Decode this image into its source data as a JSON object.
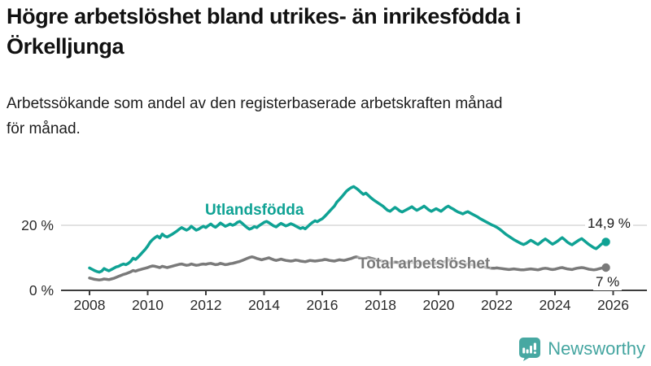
{
  "header": {
    "title": "Högre arbetslöshet bland utrikes- än inrikesfödda i\nÖrkelljunga",
    "subtitle": "Arbetssökande som andel av den registerbaserade arbetskraften månad\nför månad."
  },
  "chart_data": {
    "type": "line",
    "title": "Högre arbetslöshet bland utrikes- än inrikesfödda i Örkelljunga",
    "subtitle": "Arbetssökande som andel av den registerbaserade arbetskraften månad för månad.",
    "x_unit": "monthly, decimal years",
    "x_start_year": 2008,
    "x_step_months": 1,
    "xticks": [
      2008,
      2010,
      2012,
      2014,
      2016,
      2018,
      2020,
      2022,
      2024,
      2026
    ],
    "yticks": [
      {
        "value": 0,
        "label": "0 %"
      },
      {
        "value": 20,
        "label": "20 %"
      }
    ],
    "ylim": [
      0,
      34
    ],
    "grid": "horizontal line at 20% only",
    "legend_position": "inline labels on lines",
    "series": [
      {
        "name": "Utlandsfödda",
        "color": "#0FA294",
        "end_label": "14,9 %",
        "end_value": 14.9,
        "values": [
          6.9,
          6.5,
          6.1,
          5.8,
          5.6,
          5.9,
          6.7,
          6.3,
          6.0,
          6.4,
          6.8,
          7.2,
          7.4,
          7.8,
          8.1,
          7.9,
          8.3,
          8.9,
          9.9,
          9.5,
          10.2,
          11.0,
          11.8,
          12.6,
          13.6,
          14.8,
          15.6,
          16.2,
          16.7,
          16.1,
          17.3,
          16.7,
          16.4,
          16.8,
          17.2,
          17.7,
          18.2,
          18.8,
          19.3,
          18.9,
          18.5,
          18.9,
          19.7,
          19.1,
          18.5,
          18.8,
          19.3,
          19.7,
          19.3,
          19.9,
          20.4,
          19.8,
          19.4,
          20.0,
          20.7,
          20.2,
          19.7,
          20.0,
          20.4,
          20.0,
          20.3,
          20.9,
          21.2,
          20.6,
          19.9,
          19.3,
          18.8,
          19.1,
          19.6,
          19.3,
          19.9,
          20.4,
          20.9,
          21.2,
          20.8,
          20.3,
          19.8,
          19.5,
          20.1,
          20.6,
          20.2,
          19.8,
          20.1,
          20.5,
          20.2,
          19.8,
          19.4,
          19.0,
          19.3,
          18.9,
          19.6,
          20.3,
          20.9,
          21.4,
          21.1,
          21.6,
          22.0,
          22.7,
          23.5,
          24.3,
          25.1,
          25.9,
          27.1,
          27.9,
          28.7,
          29.6,
          30.5,
          31.1,
          31.6,
          31.9,
          31.4,
          30.8,
          30.1,
          29.5,
          29.9,
          29.2,
          28.5,
          27.9,
          27.4,
          26.9,
          26.4,
          25.9,
          25.2,
          24.6,
          24.3,
          24.9,
          25.5,
          25.0,
          24.4,
          24.1,
          24.5,
          24.9,
          25.3,
          25.7,
          25.1,
          24.6,
          25.0,
          25.4,
          25.9,
          25.3,
          24.7,
          24.3,
          24.7,
          25.1,
          24.7,
          24.3,
          24.9,
          25.5,
          25.9,
          25.4,
          25.0,
          24.5,
          24.1,
          23.8,
          23.5,
          23.9,
          24.2,
          23.8,
          23.4,
          23.0,
          22.6,
          22.1,
          21.7,
          21.3,
          20.9,
          20.5,
          20.1,
          19.8,
          19.4,
          18.9,
          18.3,
          17.7,
          17.1,
          16.6,
          16.1,
          15.6,
          15.2,
          14.8,
          14.4,
          14.1,
          14.4,
          14.9,
          15.4,
          15.0,
          14.5,
          14.1,
          14.7,
          15.3,
          15.8,
          15.3,
          14.7,
          14.2,
          14.6,
          15.1,
          15.7,
          16.2,
          15.6,
          14.9,
          14.4,
          14.0,
          14.5,
          15.0,
          15.5,
          15.9,
          15.3,
          14.7,
          14.1,
          13.6,
          13.1,
          12.8,
          13.4,
          14.1,
          14.6,
          14.9
        ]
      },
      {
        "name": "Total arbetslöshet",
        "color": "#7A7A7A",
        "end_label": "7 %",
        "end_value": 7.0,
        "values": [
          3.8,
          3.6,
          3.4,
          3.3,
          3.2,
          3.3,
          3.5,
          3.4,
          3.3,
          3.5,
          3.7,
          4.0,
          4.3,
          4.6,
          4.9,
          5.1,
          5.4,
          5.7,
          6.1,
          5.9,
          6.2,
          6.4,
          6.6,
          6.8,
          7.0,
          7.3,
          7.5,
          7.4,
          7.2,
          7.0,
          7.4,
          7.2,
          7.0,
          7.2,
          7.4,
          7.6,
          7.8,
          8.0,
          8.1,
          7.9,
          7.7,
          7.8,
          8.1,
          7.9,
          7.7,
          7.8,
          8.0,
          8.1,
          8.0,
          8.2,
          8.3,
          8.1,
          7.9,
          8.0,
          8.3,
          8.1,
          7.9,
          8.0,
          8.2,
          8.3,
          8.5,
          8.7,
          8.9,
          9.2,
          9.5,
          9.8,
          10.1,
          10.3,
          10.1,
          9.8,
          9.6,
          9.4,
          9.6,
          9.8,
          10.0,
          9.7,
          9.4,
          9.2,
          9.4,
          9.6,
          9.4,
          9.2,
          9.1,
          9.0,
          9.1,
          9.3,
          9.2,
          9.0,
          8.9,
          8.8,
          9.0,
          9.2,
          9.1,
          9.0,
          9.1,
          9.2,
          9.3,
          9.5,
          9.4,
          9.2,
          9.1,
          9.0,
          9.2,
          9.4,
          9.3,
          9.2,
          9.4,
          9.6,
          9.8,
          10.1,
          10.3,
          10.1,
          9.9,
          9.7,
          9.9,
          10.1,
          9.9,
          9.7,
          9.5,
          9.3,
          9.1,
          8.9,
          8.7,
          8.5,
          8.4,
          8.5,
          8.7,
          8.6,
          8.4,
          8.3,
          8.4,
          8.5,
          8.6,
          8.7,
          8.5,
          8.3,
          8.2,
          8.3,
          8.5,
          8.4,
          8.2,
          8.1,
          8.2,
          8.3,
          8.4,
          8.3,
          8.6,
          9.0,
          9.3,
          9.1,
          8.9,
          8.7,
          8.5,
          8.3,
          8.1,
          8.0,
          8.1,
          8.0,
          7.9,
          7.7,
          7.6,
          7.4,
          7.3,
          7.2,
          7.0,
          6.9,
          6.8,
          6.8,
          6.9,
          6.8,
          6.7,
          6.6,
          6.5,
          6.4,
          6.5,
          6.6,
          6.5,
          6.4,
          6.3,
          6.3,
          6.4,
          6.5,
          6.6,
          6.5,
          6.4,
          6.3,
          6.5,
          6.7,
          6.8,
          6.7,
          6.5,
          6.4,
          6.5,
          6.7,
          6.9,
          7.0,
          6.8,
          6.6,
          6.5,
          6.4,
          6.6,
          6.8,
          6.9,
          7.0,
          6.9,
          6.7,
          6.5,
          6.4,
          6.3,
          6.4,
          6.6,
          6.8,
          6.9,
          7.0
        ]
      }
    ],
    "colors": {
      "grid": "#D8D8D8",
      "axis": "#3C3C3C",
      "tick_text": "#2B2B2B"
    }
  },
  "footer": {
    "brand": "Newsworthy",
    "brand_color": "#44A5A0",
    "logo_icon": "bar-chart-speech-bubble-icon"
  }
}
